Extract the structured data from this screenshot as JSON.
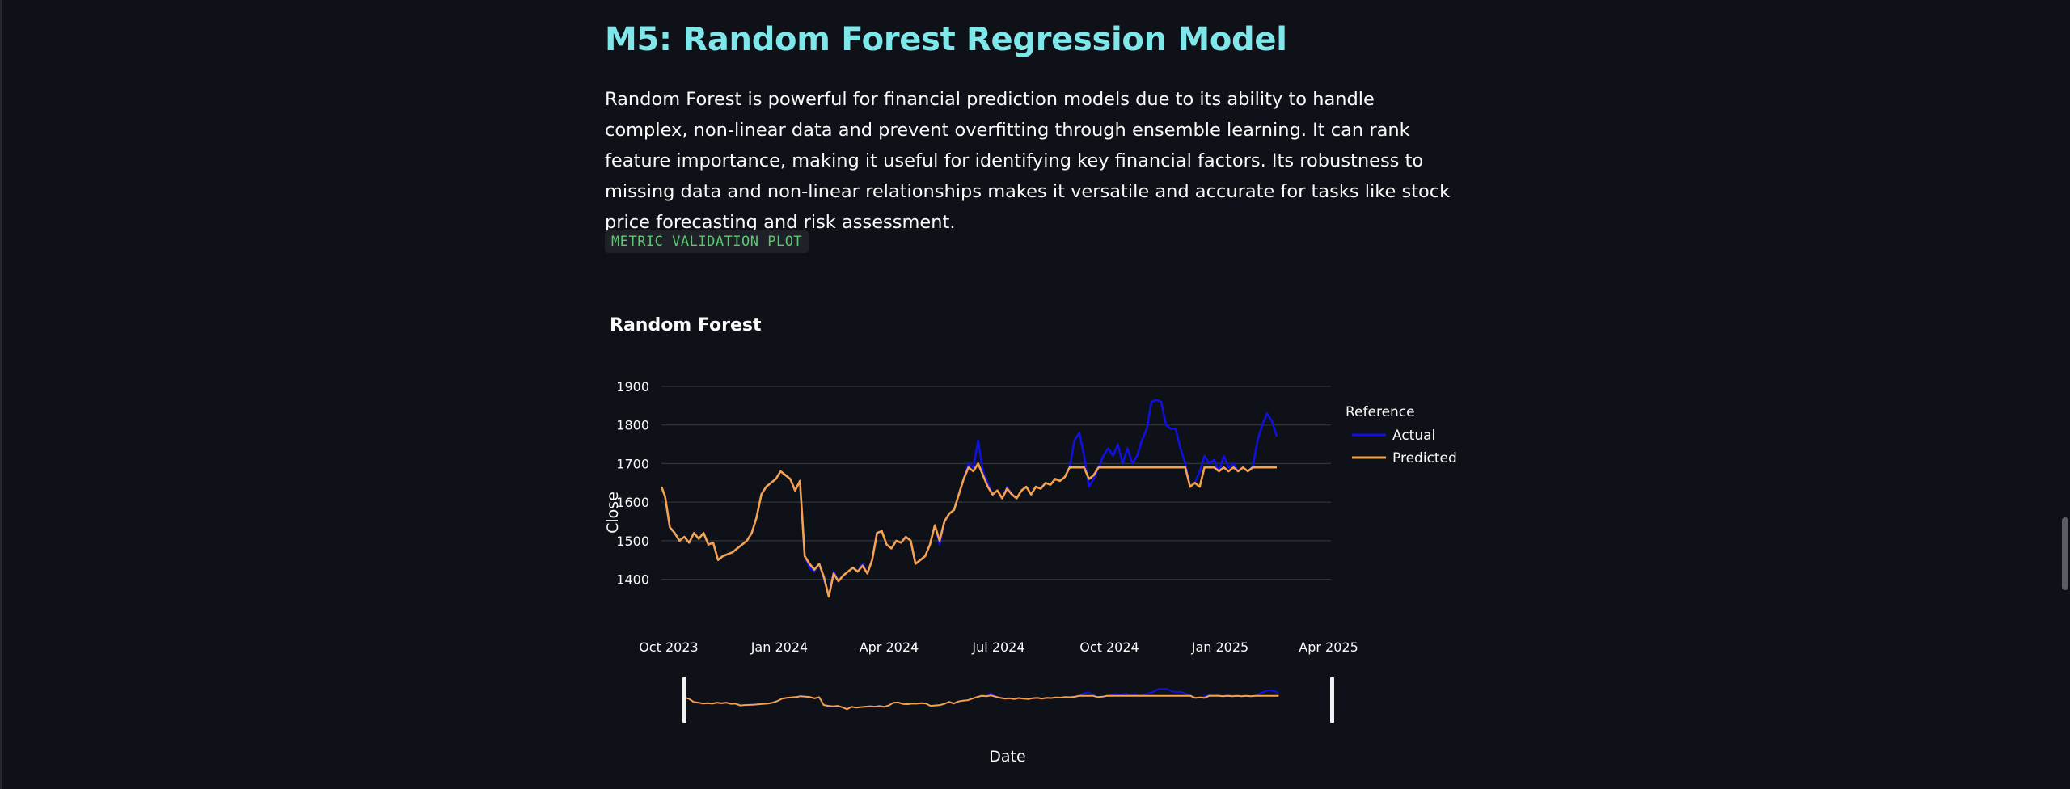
{
  "page": {
    "heading": "M5: Random Forest Regression Model",
    "description": "Random Forest is powerful for financial prediction models due to its ability to handle complex, non-linear data and prevent overfitting through ensemble learning. It can rank feature importance, making it useful for identifying key financial factors. Its robustness to missing data and non-linear relationships makes it versatile and accurate for tasks like stock price forecasting and risk assessment.",
    "code_label": "METRIC VALIDATION PLOT"
  },
  "chart_data": {
    "type": "line",
    "title": "Random Forest",
    "xlabel": "Date",
    "ylabel": "Close",
    "ylim": [
      1330,
      1900
    ],
    "yticks": [
      "1400",
      "1500",
      "1600",
      "1700",
      "1800",
      "1900"
    ],
    "xticks": [
      "Oct 2023",
      "Jan 2024",
      "Apr 2024",
      "Jul 2024",
      "Oct 2024",
      "Jan 2025",
      "Apr 2025"
    ],
    "x_range": [
      "2023-09-25",
      "2025-04-03"
    ],
    "legend_title": "Reference",
    "legend_position": "top-right",
    "grid": true,
    "rangeslider": true,
    "series": [
      {
        "name": "Actual",
        "color": "#1010e0",
        "points": [
          [
            "2023-09-25",
            1640
          ],
          [
            "2023-09-28",
            1615
          ],
          [
            "2023-10-02",
            1535
          ],
          [
            "2023-10-06",
            1520
          ],
          [
            "2023-10-10",
            1500
          ],
          [
            "2023-10-14",
            1510
          ],
          [
            "2023-10-18",
            1495
          ],
          [
            "2023-10-22",
            1520
          ],
          [
            "2023-10-26",
            1505
          ],
          [
            "2023-10-30",
            1520
          ],
          [
            "2023-11-03",
            1490
          ],
          [
            "2023-11-07",
            1495
          ],
          [
            "2023-11-11",
            1450
          ],
          [
            "2023-11-15",
            1460
          ],
          [
            "2023-11-19",
            1465
          ],
          [
            "2023-11-23",
            1470
          ],
          [
            "2023-11-27",
            1480
          ],
          [
            "2023-12-01",
            1490
          ],
          [
            "2023-12-05",
            1500
          ],
          [
            "2023-12-09",
            1520
          ],
          [
            "2023-12-13",
            1560
          ],
          [
            "2023-12-17",
            1620
          ],
          [
            "2023-12-21",
            1640
          ],
          [
            "2023-12-25",
            1650
          ],
          [
            "2023-12-29",
            1660
          ],
          [
            "2024-01-02",
            1680
          ],
          [
            "2024-01-06",
            1670
          ],
          [
            "2024-01-10",
            1660
          ],
          [
            "2024-01-14",
            1630
          ],
          [
            "2024-01-18",
            1655
          ],
          [
            "2024-01-22",
            1460
          ],
          [
            "2024-01-26",
            1430
          ],
          [
            "2024-01-30",
            1420
          ],
          [
            "2024-02-03",
            1440
          ],
          [
            "2024-02-07",
            1400
          ],
          [
            "2024-02-11",
            1360
          ],
          [
            "2024-02-15",
            1420
          ],
          [
            "2024-02-19",
            1395
          ],
          [
            "2024-02-23",
            1410
          ],
          [
            "2024-02-27",
            1420
          ],
          [
            "2024-03-02",
            1430
          ],
          [
            "2024-03-06",
            1420
          ],
          [
            "2024-03-10",
            1440
          ],
          [
            "2024-03-14",
            1415
          ],
          [
            "2024-03-18",
            1450
          ],
          [
            "2024-03-22",
            1520
          ],
          [
            "2024-03-26",
            1525
          ],
          [
            "2024-03-30",
            1490
          ],
          [
            "2024-04-03",
            1480
          ],
          [
            "2024-04-07",
            1500
          ],
          [
            "2024-04-11",
            1495
          ],
          [
            "2024-04-15",
            1510
          ],
          [
            "2024-04-19",
            1500
          ],
          [
            "2024-04-23",
            1440
          ],
          [
            "2024-04-27",
            1450
          ],
          [
            "2024-05-01",
            1460
          ],
          [
            "2024-05-05",
            1490
          ],
          [
            "2024-05-09",
            1540
          ],
          [
            "2024-05-13",
            1490
          ],
          [
            "2024-05-17",
            1550
          ],
          [
            "2024-05-21",
            1570
          ],
          [
            "2024-05-25",
            1580
          ],
          [
            "2024-05-29",
            1620
          ],
          [
            "2024-06-02",
            1660
          ],
          [
            "2024-06-06",
            1700
          ],
          [
            "2024-06-10",
            1690
          ],
          [
            "2024-06-14",
            1760
          ],
          [
            "2024-06-18",
            1680
          ],
          [
            "2024-06-22",
            1650
          ],
          [
            "2024-06-26",
            1620
          ],
          [
            "2024-06-30",
            1630
          ],
          [
            "2024-07-04",
            1610
          ],
          [
            "2024-07-08",
            1640
          ],
          [
            "2024-07-12",
            1620
          ],
          [
            "2024-07-16",
            1610
          ],
          [
            "2024-07-20",
            1630
          ],
          [
            "2024-07-24",
            1640
          ],
          [
            "2024-07-28",
            1620
          ],
          [
            "2024-08-01",
            1640
          ],
          [
            "2024-08-05",
            1635
          ],
          [
            "2024-08-09",
            1650
          ],
          [
            "2024-08-13",
            1645
          ],
          [
            "2024-08-17",
            1660
          ],
          [
            "2024-08-21",
            1655
          ],
          [
            "2024-08-25",
            1665
          ],
          [
            "2024-08-29",
            1690
          ],
          [
            "2024-09-02",
            1760
          ],
          [
            "2024-09-06",
            1780
          ],
          [
            "2024-09-10",
            1720
          ],
          [
            "2024-09-14",
            1640
          ],
          [
            "2024-09-18",
            1660
          ],
          [
            "2024-09-22",
            1690
          ],
          [
            "2024-09-26",
            1720
          ],
          [
            "2024-09-30",
            1740
          ],
          [
            "2024-10-04",
            1720
          ],
          [
            "2024-10-08",
            1750
          ],
          [
            "2024-10-12",
            1700
          ],
          [
            "2024-10-16",
            1740
          ],
          [
            "2024-10-20",
            1700
          ],
          [
            "2024-10-24",
            1720
          ],
          [
            "2024-10-28",
            1760
          ],
          [
            "2024-11-01",
            1790
          ],
          [
            "2024-11-05",
            1860
          ],
          [
            "2024-11-09",
            1865
          ],
          [
            "2024-11-13",
            1860
          ],
          [
            "2024-11-17",
            1800
          ],
          [
            "2024-11-21",
            1790
          ],
          [
            "2024-11-25",
            1790
          ],
          [
            "2024-11-29",
            1740
          ],
          [
            "2024-12-03",
            1700
          ],
          [
            "2024-12-07",
            1640
          ],
          [
            "2024-12-11",
            1650
          ],
          [
            "2024-12-15",
            1680
          ],
          [
            "2024-12-19",
            1720
          ],
          [
            "2024-12-23",
            1700
          ],
          [
            "2024-12-27",
            1710
          ],
          [
            "2024-12-31",
            1680
          ],
          [
            "2025-01-04",
            1720
          ],
          [
            "2025-01-08",
            1690
          ],
          [
            "2025-01-12",
            1700
          ],
          [
            "2025-01-16",
            1680
          ],
          [
            "2025-01-20",
            1690
          ],
          [
            "2025-01-24",
            1680
          ],
          [
            "2025-01-28",
            1690
          ],
          [
            "2025-02-01",
            1760
          ],
          [
            "2025-02-05",
            1800
          ],
          [
            "2025-02-09",
            1830
          ],
          [
            "2025-02-13",
            1810
          ],
          [
            "2025-02-17",
            1770
          ]
        ]
      },
      {
        "name": "Predicted",
        "color": "#f5a34a",
        "points": [
          [
            "2023-09-25",
            1640
          ],
          [
            "2023-09-28",
            1615
          ],
          [
            "2023-10-02",
            1535
          ],
          [
            "2023-10-06",
            1520
          ],
          [
            "2023-10-10",
            1500
          ],
          [
            "2023-10-14",
            1510
          ],
          [
            "2023-10-18",
            1495
          ],
          [
            "2023-10-22",
            1520
          ],
          [
            "2023-10-26",
            1505
          ],
          [
            "2023-10-30",
            1520
          ],
          [
            "2023-11-03",
            1490
          ],
          [
            "2023-11-07",
            1495
          ],
          [
            "2023-11-11",
            1450
          ],
          [
            "2023-11-15",
            1460
          ],
          [
            "2023-11-19",
            1465
          ],
          [
            "2023-11-23",
            1470
          ],
          [
            "2023-11-27",
            1480
          ],
          [
            "2023-12-01",
            1490
          ],
          [
            "2023-12-05",
            1500
          ],
          [
            "2023-12-09",
            1520
          ],
          [
            "2023-12-13",
            1560
          ],
          [
            "2023-12-17",
            1620
          ],
          [
            "2023-12-21",
            1640
          ],
          [
            "2023-12-25",
            1650
          ],
          [
            "2023-12-29",
            1660
          ],
          [
            "2024-01-02",
            1680
          ],
          [
            "2024-01-06",
            1670
          ],
          [
            "2024-01-10",
            1660
          ],
          [
            "2024-01-14",
            1630
          ],
          [
            "2024-01-18",
            1655
          ],
          [
            "2024-01-22",
            1460
          ],
          [
            "2024-01-26",
            1440
          ],
          [
            "2024-01-30",
            1425
          ],
          [
            "2024-02-03",
            1440
          ],
          [
            "2024-02-07",
            1405
          ],
          [
            "2024-02-11",
            1355
          ],
          [
            "2024-02-15",
            1415
          ],
          [
            "2024-02-19",
            1395
          ],
          [
            "2024-02-23",
            1410
          ],
          [
            "2024-02-27",
            1420
          ],
          [
            "2024-03-02",
            1430
          ],
          [
            "2024-03-06",
            1420
          ],
          [
            "2024-03-10",
            1435
          ],
          [
            "2024-03-14",
            1415
          ],
          [
            "2024-03-18",
            1450
          ],
          [
            "2024-03-22",
            1520
          ],
          [
            "2024-03-26",
            1525
          ],
          [
            "2024-03-30",
            1490
          ],
          [
            "2024-04-03",
            1480
          ],
          [
            "2024-04-07",
            1500
          ],
          [
            "2024-04-11",
            1495
          ],
          [
            "2024-04-15",
            1510
          ],
          [
            "2024-04-19",
            1500
          ],
          [
            "2024-04-23",
            1440
          ],
          [
            "2024-04-27",
            1450
          ],
          [
            "2024-05-01",
            1460
          ],
          [
            "2024-05-05",
            1490
          ],
          [
            "2024-05-09",
            1540
          ],
          [
            "2024-05-13",
            1500
          ],
          [
            "2024-05-17",
            1550
          ],
          [
            "2024-05-21",
            1570
          ],
          [
            "2024-05-25",
            1580
          ],
          [
            "2024-05-29",
            1620
          ],
          [
            "2024-06-02",
            1660
          ],
          [
            "2024-06-06",
            1690
          ],
          [
            "2024-06-10",
            1680
          ],
          [
            "2024-06-14",
            1700
          ],
          [
            "2024-06-18",
            1670
          ],
          [
            "2024-06-22",
            1640
          ],
          [
            "2024-06-26",
            1620
          ],
          [
            "2024-06-30",
            1630
          ],
          [
            "2024-07-04",
            1610
          ],
          [
            "2024-07-08",
            1635
          ],
          [
            "2024-07-12",
            1620
          ],
          [
            "2024-07-16",
            1610
          ],
          [
            "2024-07-20",
            1630
          ],
          [
            "2024-07-24",
            1640
          ],
          [
            "2024-07-28",
            1620
          ],
          [
            "2024-08-01",
            1640
          ],
          [
            "2024-08-05",
            1635
          ],
          [
            "2024-08-09",
            1650
          ],
          [
            "2024-08-13",
            1645
          ],
          [
            "2024-08-17",
            1660
          ],
          [
            "2024-08-21",
            1655
          ],
          [
            "2024-08-25",
            1665
          ],
          [
            "2024-08-29",
            1690
          ],
          [
            "2024-09-02",
            1690
          ],
          [
            "2024-09-06",
            1690
          ],
          [
            "2024-09-10",
            1690
          ],
          [
            "2024-09-14",
            1660
          ],
          [
            "2024-09-18",
            1670
          ],
          [
            "2024-09-22",
            1690
          ],
          [
            "2024-09-26",
            1690
          ],
          [
            "2024-09-30",
            1690
          ],
          [
            "2024-10-04",
            1690
          ],
          [
            "2024-10-08",
            1690
          ],
          [
            "2024-10-12",
            1690
          ],
          [
            "2024-10-16",
            1690
          ],
          [
            "2024-10-20",
            1690
          ],
          [
            "2024-10-24",
            1690
          ],
          [
            "2024-10-28",
            1690
          ],
          [
            "2024-11-01",
            1690
          ],
          [
            "2024-11-05",
            1690
          ],
          [
            "2024-11-09",
            1690
          ],
          [
            "2024-11-13",
            1690
          ],
          [
            "2024-11-17",
            1690
          ],
          [
            "2024-11-21",
            1690
          ],
          [
            "2024-11-25",
            1690
          ],
          [
            "2024-11-29",
            1690
          ],
          [
            "2024-12-03",
            1690
          ],
          [
            "2024-12-07",
            1640
          ],
          [
            "2024-12-11",
            1650
          ],
          [
            "2024-12-15",
            1640
          ],
          [
            "2024-12-19",
            1690
          ],
          [
            "2024-12-23",
            1690
          ],
          [
            "2024-12-27",
            1690
          ],
          [
            "2024-12-31",
            1680
          ],
          [
            "2025-01-04",
            1690
          ],
          [
            "2025-01-08",
            1680
          ],
          [
            "2025-01-12",
            1690
          ],
          [
            "2025-01-16",
            1680
          ],
          [
            "2025-01-20",
            1690
          ],
          [
            "2025-01-24",
            1680
          ],
          [
            "2025-01-28",
            1690
          ],
          [
            "2025-02-01",
            1690
          ],
          [
            "2025-02-05",
            1690
          ],
          [
            "2025-02-09",
            1690
          ],
          [
            "2025-02-13",
            1690
          ],
          [
            "2025-02-17",
            1690
          ]
        ]
      }
    ]
  }
}
